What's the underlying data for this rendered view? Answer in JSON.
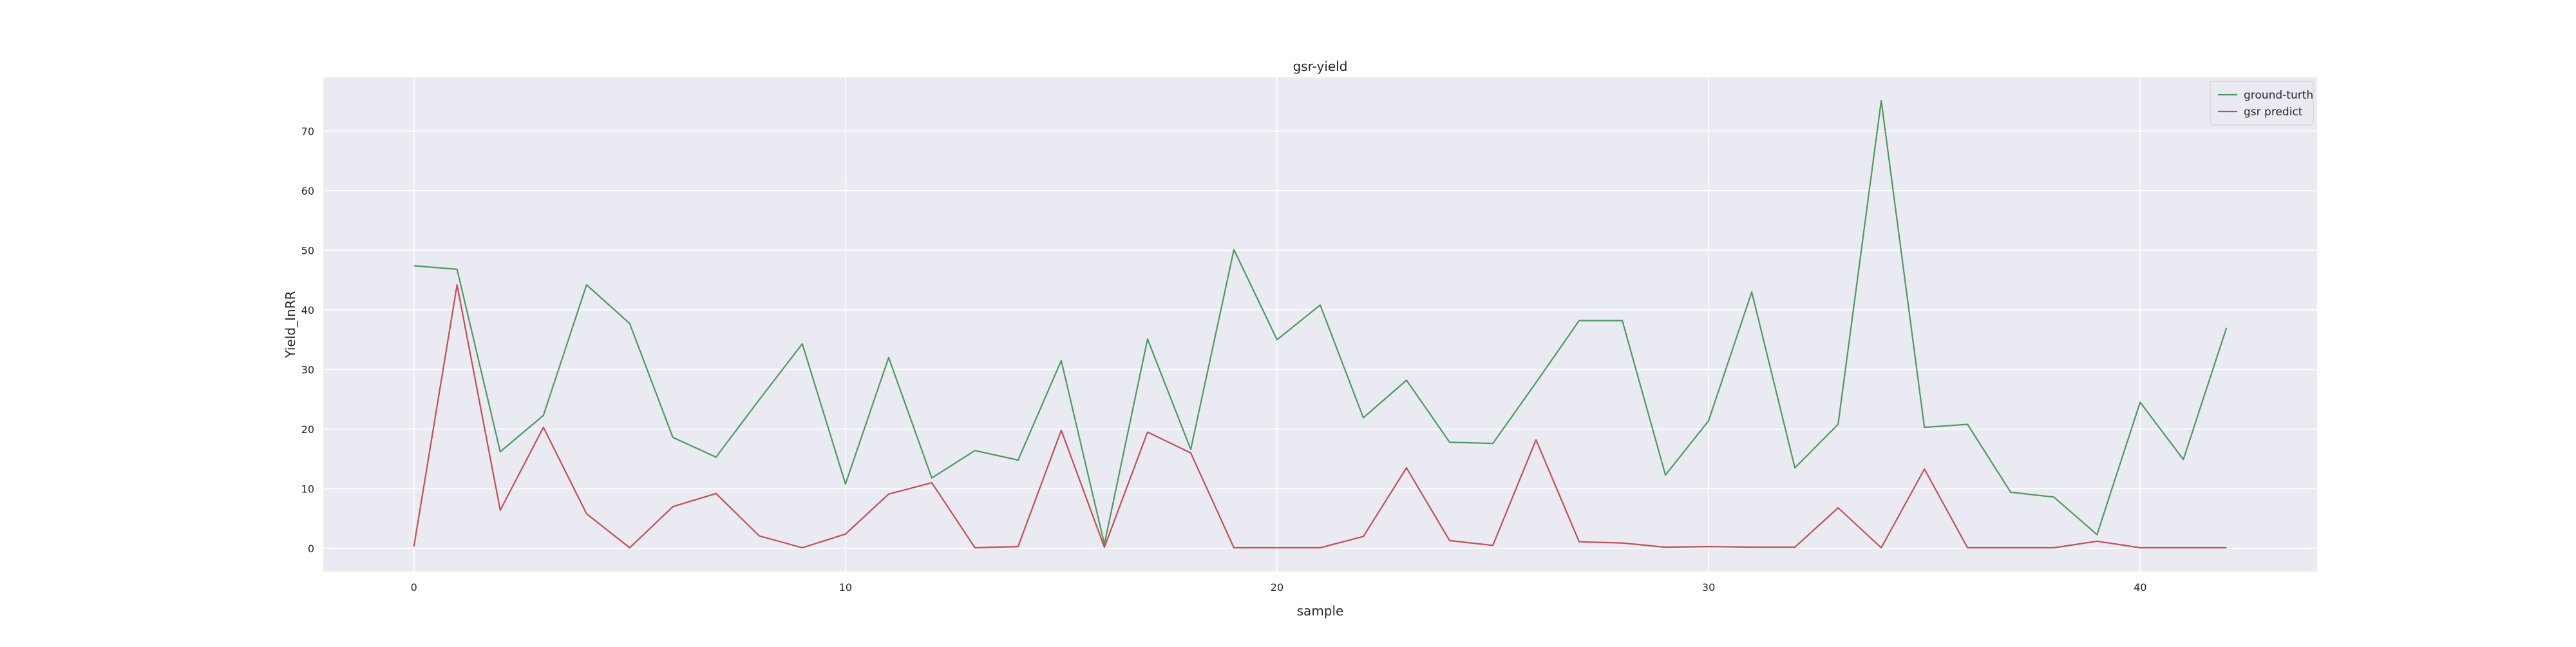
{
  "chart_data": {
    "type": "line",
    "title": "gsr-yield",
    "xlabel": "sample",
    "ylabel": "Yield_InRR",
    "xlim": [
      -2.1,
      44.1
    ],
    "ylim": [
      -3.9,
      79.0
    ],
    "xticks": [
      0,
      10,
      20,
      30,
      40
    ],
    "yticks": [
      0,
      10,
      20,
      30,
      40,
      50,
      60,
      70
    ],
    "grid": true,
    "legend_position": "top-right",
    "x": [
      0,
      1,
      2,
      3,
      4,
      5,
      6,
      7,
      8,
      9,
      10,
      11,
      12,
      13,
      14,
      15,
      16,
      17,
      18,
      19,
      20,
      21,
      22,
      23,
      24,
      25,
      26,
      27,
      28,
      29,
      30,
      31,
      32,
      33,
      34,
      35,
      36,
      37,
      38,
      39,
      40,
      41,
      42
    ],
    "series": [
      {
        "name": "ground-turth",
        "color": "#4c9a5e",
        "values": [
          47.4,
          46.8,
          16.2,
          22.3,
          44.2,
          37.7,
          18.6,
          15.3,
          24.9,
          34.3,
          10.8,
          32.0,
          11.8,
          16.4,
          14.8,
          31.5,
          0.7,
          35.1,
          16.6,
          50.1,
          35.0,
          40.8,
          21.9,
          28.2,
          17.8,
          17.6,
          27.8,
          38.2,
          38.2,
          12.3,
          21.4,
          43.0,
          13.5,
          20.8,
          75.1,
          20.3,
          20.8,
          9.4,
          8.6,
          2.3,
          24.5,
          14.9,
          37.0
        ]
      },
      {
        "name": "gsr predict",
        "color": "#c44e52",
        "values": [
          0.3,
          44.2,
          6.4,
          20.3,
          5.8,
          0.1,
          7.0,
          9.2,
          2.1,
          0.1,
          2.4,
          9.1,
          11.0,
          0.1,
          0.3,
          19.8,
          0.2,
          19.5,
          16.0,
          0.1,
          0.1,
          0.1,
          2.0,
          13.5,
          1.3,
          0.5,
          18.2,
          1.1,
          0.9,
          0.2,
          0.3,
          0.2,
          0.2,
          6.8,
          0.1,
          13.3,
          0.1,
          0.1,
          0.1,
          1.2,
          0.1,
          0.1,
          0.1
        ]
      }
    ]
  },
  "style": {
    "plot_background": "#eaeaf2",
    "grid_color": "#ffffff",
    "text_color": "#262626"
  }
}
